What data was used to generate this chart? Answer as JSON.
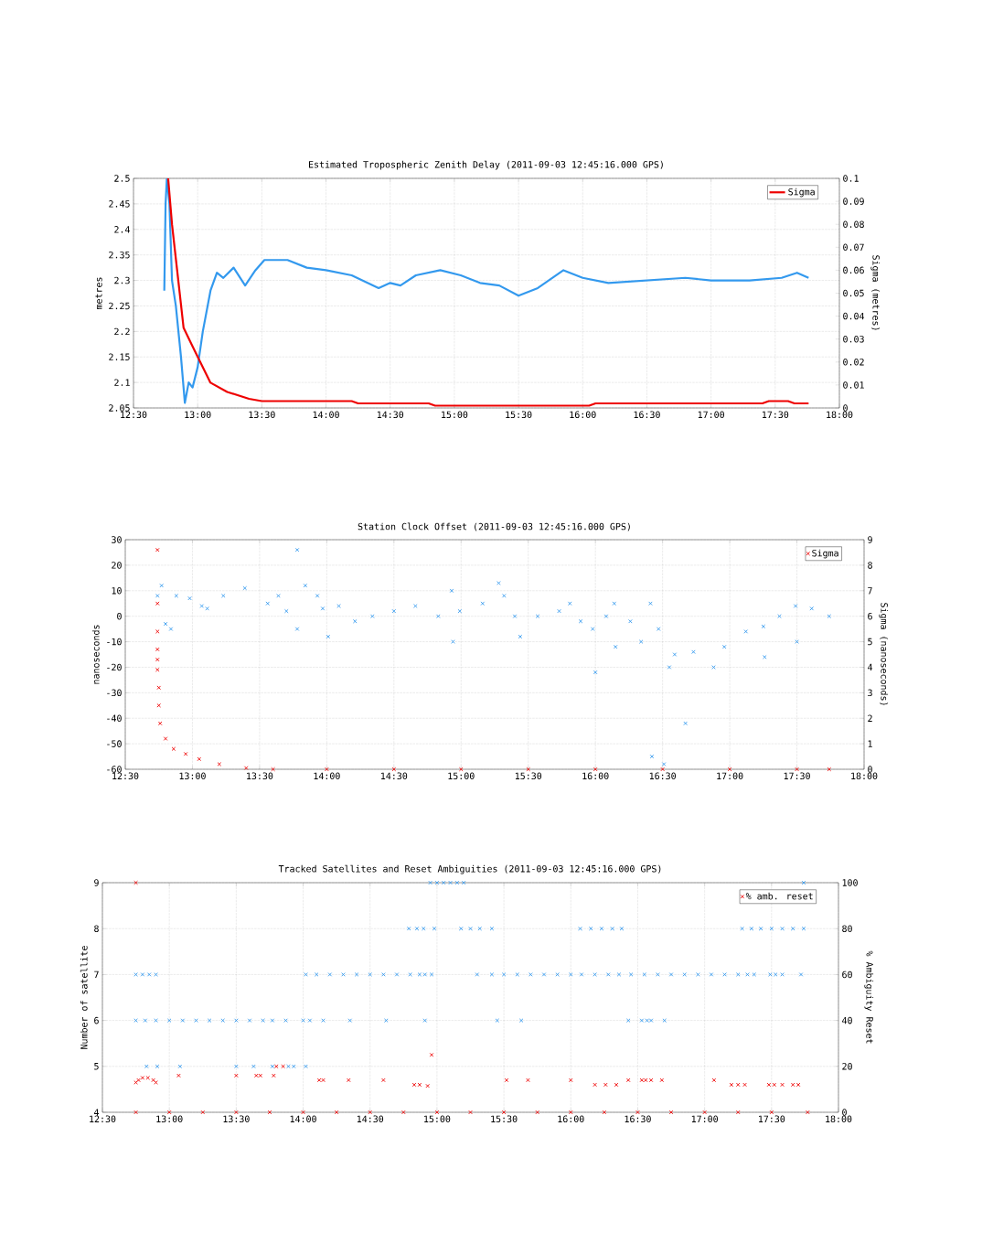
{
  "chart_data": [
    {
      "type": "line",
      "title": "Estimated Tropospheric Zenith Delay (2011-09-03 12:45:16.000 GPS)",
      "ylabel": "metres",
      "y2label": "Sigma (metres)",
      "xlim": [
        12.5,
        18
      ],
      "xticks": [
        {
          "value": 12.5,
          "label": "12:30"
        },
        {
          "value": 13,
          "label": "13:00"
        },
        {
          "value": 13.5,
          "label": "13:30"
        },
        {
          "value": 14,
          "label": "14:00"
        },
        {
          "value": 14.5,
          "label": "14:30"
        },
        {
          "value": 15,
          "label": "15:00"
        },
        {
          "value": 15.5,
          "label": "15:30"
        },
        {
          "value": 16,
          "label": "16:00"
        },
        {
          "value": 16.5,
          "label": "16:30"
        },
        {
          "value": 17,
          "label": "17:00"
        },
        {
          "value": 17.5,
          "label": "17:30"
        },
        {
          "value": 18,
          "label": "18:00"
        }
      ],
      "ylim": [
        2.05,
        2.5
      ],
      "yticks": [
        2.05,
        2.1,
        2.15,
        2.2,
        2.25,
        2.3,
        2.35,
        2.4,
        2.45,
        2.5
      ],
      "y2lim": [
        0,
        0.1
      ],
      "y2ticks": [
        0,
        0.01,
        0.02,
        0.03,
        0.04,
        0.05,
        0.06,
        0.07,
        0.08,
        0.09,
        0.1
      ],
      "grid": true,
      "legend": "top right",
      "series": [
        {
          "color": "#3399ee",
          "x": [
            12.74,
            12.75,
            12.76,
            12.78,
            12.8,
            12.83,
            12.87,
            12.9,
            12.93,
            12.96,
            13.0,
            13.04,
            13.1,
            13.15,
            13.2,
            13.28,
            13.37,
            13.45,
            13.52,
            13.7,
            13.85,
            14.0,
            14.2,
            14.41,
            14.5,
            14.58,
            14.7,
            14.89,
            15.05,
            15.2,
            15.35,
            15.5,
            15.65,
            15.85,
            16.0,
            16.2,
            16.5,
            16.8,
            17.0,
            17.3,
            17.55,
            17.67,
            17.76
          ],
          "values": [
            2.28,
            2.45,
            2.5,
            2.45,
            2.3,
            2.25,
            2.15,
            2.06,
            2.1,
            2.09,
            2.13,
            2.2,
            2.28,
            2.315,
            2.305,
            2.325,
            2.29,
            2.32,
            2.34,
            2.34,
            2.325,
            2.32,
            2.31,
            2.285,
            2.295,
            2.29,
            2.31,
            2.32,
            2.31,
            2.295,
            2.29,
            2.27,
            2.285,
            2.32,
            2.305,
            2.295,
            2.3,
            2.305,
            2.3,
            2.3,
            2.305,
            2.315,
            2.305
          ]
        },
        {
          "name": "Sigma",
          "color": "#ee0000",
          "axis": "y2",
          "x": [
            12.77,
            12.8,
            12.84,
            12.89,
            12.95,
            13.02,
            13.1,
            13.23,
            13.4,
            13.5,
            14.2,
            14.25,
            14.8,
            14.85,
            16.05,
            16.1,
            17.4,
            17.45,
            17.6,
            17.65,
            17.76
          ],
          "values": [
            0.1,
            0.08,
            0.06,
            0.035,
            0.028,
            0.02,
            0.011,
            0.007,
            0.004,
            0.003,
            0.003,
            0.002,
            0.002,
            0.001,
            0.001,
            0.002,
            0.002,
            0.003,
            0.003,
            0.002,
            0.002
          ]
        }
      ]
    },
    {
      "type": "scatter",
      "marker": "cross",
      "title": "Station Clock Offset (2011-09-03 12:45:16.000 GPS)",
      "ylabel": "nanoseconds",
      "y2label": "Sigma (nanoseconds)",
      "xlim": [
        12.5,
        18
      ],
      "xticks": [
        {
          "value": 12.5,
          "label": "12:30"
        },
        {
          "value": 13,
          "label": "13:00"
        },
        {
          "value": 13.5,
          "label": "13:30"
        },
        {
          "value": 14,
          "label": "14:00"
        },
        {
          "value": 14.5,
          "label": "14:30"
        },
        {
          "value": 15,
          "label": "15:00"
        },
        {
          "value": 15.5,
          "label": "15:30"
        },
        {
          "value": 16,
          "label": "16:00"
        },
        {
          "value": 16.5,
          "label": "16:30"
        },
        {
          "value": 17,
          "label": "17:00"
        },
        {
          "value": 17.5,
          "label": "17:30"
        },
        {
          "value": 18,
          "label": "18:00"
        }
      ],
      "ylim": [
        -60,
        30
      ],
      "yticks": [
        -60,
        -50,
        -40,
        -30,
        -20,
        -10,
        0,
        10,
        20,
        30
      ],
      "y2lim": [
        0,
        9
      ],
      "y2ticks": [
        0,
        1,
        2,
        3,
        4,
        5,
        6,
        7,
        8,
        9
      ],
      "grid": true,
      "legend": "top right",
      "series": [
        {
          "color": "#3399ee",
          "x": [
            12.74,
            12.77,
            12.8,
            12.84,
            12.88,
            12.98,
            13.07,
            13.11,
            13.23,
            13.39,
            13.56,
            13.64,
            13.7,
            13.78,
            13.78,
            13.84,
            13.93,
            13.97,
            14.01,
            14.09,
            14.21,
            14.34,
            14.5,
            14.66,
            14.83,
            14.93,
            14.94,
            14.99,
            15.16,
            15.28,
            15.32,
            15.4,
            15.44,
            15.57,
            15.73,
            15.81,
            15.89,
            15.98,
            16.0,
            16.08,
            16.14,
            16.15,
            16.26,
            16.34,
            16.41,
            16.42,
            16.47,
            16.51,
            16.55,
            16.59,
            16.67,
            16.73,
            16.88,
            16.96,
            17.12,
            17.25,
            17.26,
            17.37,
            17.49,
            17.5,
            17.61,
            17.74
          ],
          "values": [
            8,
            12,
            -3,
            -5,
            8,
            7,
            4,
            3,
            8,
            11,
            5,
            8,
            2,
            26,
            -5,
            12,
            8,
            3,
            -8,
            4,
            -2,
            0,
            2,
            4,
            0,
            10,
            -10,
            2,
            5,
            13,
            8,
            0,
            -8,
            0,
            2,
            5,
            -2,
            -5,
            -22,
            0,
            5,
            -12,
            -2,
            -10,
            5,
            -55,
            -5,
            -58,
            -20,
            -15,
            -42,
            -14,
            -20,
            -12,
            -6,
            -4,
            -16,
            0,
            4,
            -10,
            3,
            0
          ]
        },
        {
          "name": "Sigma",
          "color": "#ee0000",
          "axis": "y2",
          "x": [
            12.74,
            12.74,
            12.74,
            12.74,
            12.74,
            12.74,
            12.75,
            12.75,
            12.76,
            12.8,
            12.86,
            12.95,
            13.05,
            13.2,
            13.4,
            13.6,
            14.0,
            14.5,
            15.0,
            15.5,
            16.0,
            16.5,
            17.0,
            17.5,
            17.74
          ],
          "values": [
            8.6,
            6.5,
            5.4,
            4.7,
            4.3,
            3.9,
            3.2,
            2.5,
            1.8,
            1.2,
            0.8,
            0.6,
            0.4,
            0.2,
            0.05,
            0,
            0,
            0,
            0,
            0,
            0,
            0,
            0,
            0,
            0
          ]
        }
      ]
    },
    {
      "type": "scatter",
      "marker": "cross",
      "title": "Tracked Satellites and Reset Ambiguities (2011-09-03 12:45:16.000 GPS)",
      "ylabel": "Number of satellite",
      "y2label": "% Ambiguity Reset",
      "xlim": [
        12.5,
        18
      ],
      "xticks": [
        {
          "value": 12.5,
          "label": "12:30"
        },
        {
          "value": 13,
          "label": "13:00"
        },
        {
          "value": 13.5,
          "label": "13:30"
        },
        {
          "value": 14,
          "label": "14:00"
        },
        {
          "value": 14.5,
          "label": "14:30"
        },
        {
          "value": 15,
          "label": "15:00"
        },
        {
          "value": 15.5,
          "label": "15:30"
        },
        {
          "value": 16,
          "label": "16:00"
        },
        {
          "value": 16.5,
          "label": "16:30"
        },
        {
          "value": 17,
          "label": "17:00"
        },
        {
          "value": 17.5,
          "label": "17:30"
        },
        {
          "value": 18,
          "label": "18:00"
        }
      ],
      "ylim": [
        4,
        9
      ],
      "yticks": [
        4,
        5,
        6,
        7,
        8,
        9
      ],
      "y2lim": [
        0,
        100
      ],
      "y2ticks": [
        0,
        20,
        40,
        60,
        80,
        100
      ],
      "grid": true,
      "legend": "top right",
      "series": [
        {
          "color": "#3399ee",
          "x": [
            14.95,
            15.0,
            15.05,
            15.1,
            15.15,
            15.2,
            17.74,
            14.79,
            14.85,
            14.9,
            14.98,
            15.18,
            15.25,
            15.32,
            15.41,
            16.07,
            16.15,
            16.23,
            16.31,
            16.38,
            17.28,
            17.35,
            17.42,
            17.5,
            17.58,
            17.66,
            17.74,
            12.75,
            12.8,
            12.85,
            12.9,
            14.02,
            14.1,
            14.2,
            14.3,
            14.4,
            14.5,
            14.6,
            14.7,
            14.8,
            14.87,
            14.91,
            14.96,
            15.3,
            15.41,
            15.5,
            15.6,
            15.7,
            15.8,
            15.9,
            16.0,
            16.08,
            16.18,
            16.28,
            16.36,
            16.45,
            16.55,
            16.65,
            16.75,
            16.85,
            16.95,
            17.05,
            17.15,
            17.25,
            17.32,
            17.37,
            17.49,
            17.53,
            17.58,
            17.72,
            12.75,
            12.82,
            12.9,
            13.0,
            13.1,
            13.2,
            13.3,
            13.4,
            13.5,
            13.6,
            13.7,
            13.77,
            13.87,
            14.0,
            14.05,
            14.15,
            14.35,
            14.62,
            14.91,
            15.45,
            15.63,
            16.43,
            16.53,
            16.57,
            16.6,
            16.7,
            12.83,
            12.91,
            13.08,
            13.5,
            13.63,
            13.77,
            13.89,
            13.93,
            14.02
          ],
          "values": [
            9,
            9,
            9,
            9,
            9,
            9,
            9,
            8,
            8,
            8,
            8,
            8,
            8,
            8,
            8,
            8,
            8,
            8,
            8,
            8,
            8,
            8,
            8,
            8,
            8,
            8,
            8,
            7,
            7,
            7,
            7,
            7,
            7,
            7,
            7,
            7,
            7,
            7,
            7,
            7,
            7,
            7,
            7,
            7,
            7,
            7,
            7,
            7,
            7,
            7,
            7,
            7,
            7,
            7,
            7,
            7,
            7,
            7,
            7,
            7,
            7,
            7,
            7,
            7,
            7,
            7,
            7,
            7,
            7,
            7,
            6,
            6,
            6,
            6,
            6,
            6,
            6,
            6,
            6,
            6,
            6,
            6,
            6,
            6,
            6,
            6,
            6,
            6,
            6,
            6,
            6,
            6,
            6,
            6,
            6,
            6,
            5,
            5,
            5,
            5,
            5,
            5,
            5,
            5,
            5
          ]
        },
        {
          "name": "% amb. reset",
          "color": "#ee0000",
          "axis": "y2",
          "x": [
            12.75,
            12.75,
            12.77,
            12.8,
            12.84,
            12.88,
            12.9,
            13.07,
            13.5,
            13.65,
            13.68,
            13.78,
            13.8,
            13.85,
            14.12,
            14.15,
            14.34,
            14.6,
            14.83,
            14.87,
            14.93,
            14.96,
            15.52,
            15.68,
            16.0,
            16.18,
            16.26,
            16.34,
            16.43,
            16.53,
            16.56,
            16.6,
            16.68,
            17.07,
            17.2,
            17.25,
            17.3,
            17.48,
            17.52,
            17.58,
            17.66,
            17.7,
            12.75,
            13.0,
            13.25,
            13.5,
            13.75,
            14.0,
            14.25,
            14.5,
            14.75,
            15.0,
            15.25,
            15.5,
            15.75,
            16.0,
            16.25,
            16.5,
            16.75,
            17.0,
            17.25,
            17.5,
            17.77
          ],
          "values": [
            100,
            13,
            14,
            15,
            15,
            14,
            13,
            16,
            16,
            16,
            16,
            16,
            20,
            20,
            14,
            14,
            14,
            14,
            12,
            12,
            11.5,
            25,
            14,
            14,
            14,
            12,
            12,
            12,
            14,
            14,
            14,
            14,
            14,
            14,
            12,
            12,
            12,
            12,
            12,
            12,
            12,
            12,
            0,
            0,
            0,
            0,
            0,
            0,
            0,
            0,
            0,
            0,
            0,
            0,
            0,
            0,
            0,
            0,
            0,
            0,
            0,
            0,
            0
          ]
        }
      ]
    }
  ]
}
